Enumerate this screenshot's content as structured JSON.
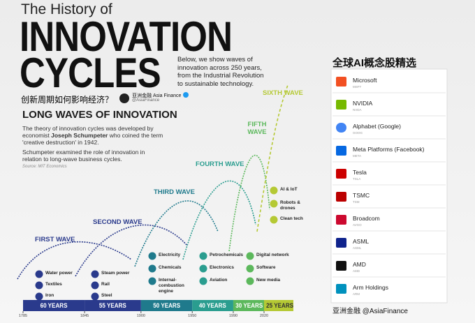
{
  "header": {
    "kicker": "The History of",
    "title_line1": "INNOVATION",
    "title_line2": "CYCLES",
    "description": "Below, we show waves of innovation across 250 years, from the Industrial Revolution to sustainable technology."
  },
  "question": "创新周期如何影响经济？",
  "badge": {
    "name": "亚洲金融 Asia Finance",
    "handle": "@AsiaFinance"
  },
  "intro": {
    "heading": "LONG WAVES OF INNOVATION",
    "paragraph1": [
      "The theory of innovation cycles was developed by economist ",
      "Joseph Schumpeter",
      " who coined the term 'creative destruction' in 1942."
    ],
    "paragraph2": "Schumpeter examined the role of innovation in relation to long-wave business cycles.",
    "source": "Source: MIT Economics"
  },
  "waves": [
    {
      "label": "FIRST WAVE",
      "duration": "60 YEARS",
      "items": [
        "Water power",
        "Textiles",
        "Iron"
      ]
    },
    {
      "label": "SECOND WAVE",
      "duration": "55 YEARS",
      "items": [
        "Steam power",
        "Rail",
        "Steel"
      ]
    },
    {
      "label": "THIRD WAVE",
      "duration": "50 YEARS",
      "items": [
        "Electricity",
        "Chemicals",
        "Internal-combustion engine"
      ]
    },
    {
      "label": "FOURTH WAVE",
      "duration": "40 YEARS",
      "items": [
        "Petrochemicals",
        "Electronics",
        "Aviation"
      ]
    },
    {
      "label": "FIFTH WAVE",
      "duration": "30 YEARS",
      "items": [
        "Digital network",
        "Software",
        "New media"
      ]
    },
    {
      "label": "SIXTH WAVE",
      "duration": "25 YEARS",
      "items": [
        "AI & IoT",
        "Robots & drones",
        "Clean tech"
      ]
    }
  ],
  "timeline": {
    "years": [
      1785,
      1845,
      1900,
      1950,
      1990,
      2020
    ]
  },
  "panel": {
    "title": "全球AI概念股精选",
    "stocks": [
      {
        "name": "Microsoft",
        "ticker": "MSFT"
      },
      {
        "name": "NVIDIA",
        "ticker": "NVDA"
      },
      {
        "name": "Alphabet (Google)",
        "ticker": "GOOG"
      },
      {
        "name": "Meta Platforms (Facebook)",
        "ticker": "META"
      },
      {
        "name": "Tesla",
        "ticker": "TSLA"
      },
      {
        "name": "TSMC",
        "ticker": "TSM"
      },
      {
        "name": "Broadcom",
        "ticker": "AVGO"
      },
      {
        "name": "ASML",
        "ticker": "ASML"
      },
      {
        "name": "AMD",
        "ticker": "AMD"
      },
      {
        "name": "Arm Holdings",
        "ticker": "ARM"
      }
    ],
    "footer": "亚洲金融 @AsiaFinance"
  }
}
